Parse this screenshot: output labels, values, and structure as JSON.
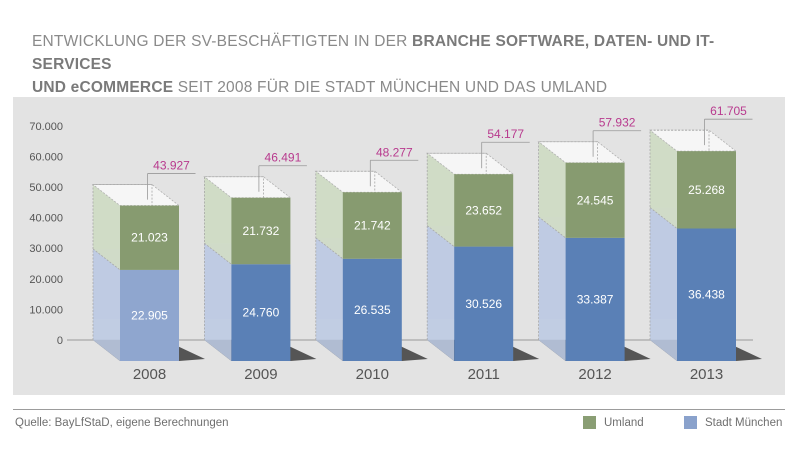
{
  "title": {
    "line1_normal": "ENTWICKLUNG DER SV-BESCHÄFTIGTEN IN DER ",
    "line1_bold": "BRANCHE SOFTWARE, DATEN- UND IT-SERVICES",
    "line2_bold": "UND eCOMMERCE",
    "line2_normal": " SEIT 2008 FÜR DIE STADT MÜNCHEN UND DAS UMLAND"
  },
  "source": "Quelle: BayLfStaD, eigene Berechnungen",
  "legend": [
    {
      "label": "Umland",
      "color": "#8a9e74"
    },
    {
      "label": "Stadt München",
      "color": "#8aa2cc"
    }
  ],
  "colors": {
    "umland": "#879b70",
    "stadt": "#5a80b6",
    "stadt_2008": "#8fa6cf",
    "total_label": "#b83a8e"
  },
  "chart_data": {
    "type": "bar",
    "stacked": true,
    "categories": [
      "2008",
      "2009",
      "2010",
      "2011",
      "2012",
      "2013"
    ],
    "series": [
      {
        "name": "Stadt München",
        "values": [
          22905,
          24760,
          26535,
          30526,
          33387,
          36438
        ]
      },
      {
        "name": "Umland",
        "values": [
          21023,
          21732,
          21742,
          23652,
          24545,
          25268
        ]
      }
    ],
    "totals": [
      43927,
      46491,
      48277,
      54177,
      57932,
      61705
    ],
    "value_labels": {
      "Stadt München": [
        "22.905",
        "24.760",
        "26.535",
        "30.526",
        "33.387",
        "36.438"
      ],
      "Umland": [
        "21.023",
        "21.732",
        "21.742",
        "23.652",
        "24.545",
        "25.268"
      ],
      "totals": [
        "43.927",
        "46.491",
        "48.277",
        "54.177",
        "57.932",
        "61.705"
      ]
    },
    "y_ticks": [
      "0",
      "10.000",
      "20.000",
      "30.000",
      "40.000",
      "50.000",
      "60.000",
      "70.000"
    ],
    "ylim": [
      0,
      70000
    ],
    "grid": false,
    "legend_position": "bottom-right"
  }
}
